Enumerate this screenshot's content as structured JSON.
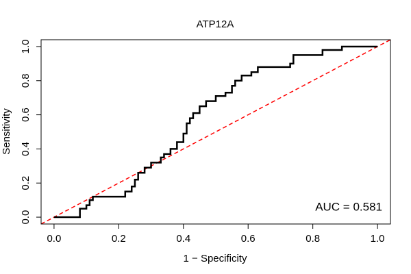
{
  "chart_data": {
    "type": "line",
    "title": "ATP12A",
    "x_label": "1 − Specificity",
    "y_label": "Sensitivity",
    "annotation": "AUC = 0.581",
    "xlim": [
      -0.04,
      1.04
    ],
    "ylim": [
      -0.04,
      1.04
    ],
    "xticks": [
      {
        "value": 0,
        "label": "0.0"
      },
      {
        "value": 0.2,
        "label": "0.2"
      },
      {
        "value": 0.4,
        "label": "0.4"
      },
      {
        "value": 0.6,
        "label": "0.6"
      },
      {
        "value": 0.8,
        "label": "0.8"
      },
      {
        "value": 1,
        "label": "1.0"
      }
    ],
    "yticks": [
      {
        "value": 0,
        "label": "0.0"
      },
      {
        "value": 0.2,
        "label": "0.2"
      },
      {
        "value": 0.4,
        "label": "0.4"
      },
      {
        "value": 0.6,
        "label": "0.6"
      },
      {
        "value": 0.8,
        "label": "0.8"
      },
      {
        "value": 1,
        "label": "1.0"
      }
    ],
    "reference_color": "#ff0000",
    "series": [
      {
        "color": "#000000",
        "x": [
          0,
          0.08,
          0.08,
          0.1,
          0.1,
          0.11,
          0.11,
          0.12,
          0.12,
          0.22,
          0.22,
          0.24,
          0.24,
          0.25,
          0.25,
          0.26,
          0.26,
          0.28,
          0.28,
          0.3,
          0.3,
          0.33,
          0.33,
          0.34,
          0.34,
          0.36,
          0.36,
          0.38,
          0.38,
          0.4,
          0.4,
          0.41,
          0.41,
          0.42,
          0.42,
          0.43,
          0.43,
          0.45,
          0.45,
          0.47,
          0.47,
          0.5,
          0.5,
          0.53,
          0.53,
          0.55,
          0.55,
          0.56,
          0.56,
          0.58,
          0.58,
          0.61,
          0.61,
          0.63,
          0.63,
          0.73,
          0.73,
          0.74,
          0.74,
          0.83,
          0.83,
          0.89,
          0.89,
          1
        ],
        "values": [
          0,
          0,
          0.05,
          0.05,
          0.07,
          0.07,
          0.1,
          0.1,
          0.12,
          0.12,
          0.15,
          0.15,
          0.18,
          0.18,
          0.22,
          0.22,
          0.26,
          0.26,
          0.29,
          0.29,
          0.32,
          0.32,
          0.35,
          0.35,
          0.37,
          0.37,
          0.4,
          0.4,
          0.44,
          0.44,
          0.49,
          0.49,
          0.55,
          0.55,
          0.58,
          0.58,
          0.61,
          0.61,
          0.65,
          0.65,
          0.68,
          0.68,
          0.71,
          0.71,
          0.73,
          0.73,
          0.77,
          0.77,
          0.8,
          0.8,
          0.83,
          0.83,
          0.85,
          0.85,
          0.88,
          0.88,
          0.9,
          0.9,
          0.95,
          0.95,
          0.98,
          0.98,
          1,
          1
        ]
      }
    ]
  }
}
